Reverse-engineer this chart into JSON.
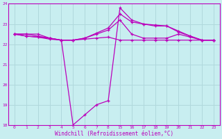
{
  "xlabel": "Windchill (Refroidissement éolien,°C)",
  "bg_color": "#c8eef0",
  "grid_color": "#b0d8dc",
  "line_color": "#bb00bb",
  "xmin": -0.5,
  "xmax": 17.5,
  "ymin": 18,
  "ymax": 24,
  "xtick_labels": [
    "0",
    "1",
    "2",
    "3",
    "4",
    "5",
    "6",
    "7",
    "8",
    "15",
    "16",
    "17",
    "18",
    "19",
    "20",
    "21",
    "22",
    "23"
  ],
  "ytick_labels": [
    "18",
    "19",
    "20",
    "21",
    "22",
    "23",
    "24"
  ],
  "ytick_vals": [
    18,
    19,
    20,
    21,
    22,
    23,
    24
  ],
  "series": [
    {
      "xi": [
        0,
        1,
        2,
        3,
        4,
        5,
        6,
        7,
        8,
        9,
        10,
        11,
        12,
        13,
        14,
        15,
        16,
        17
      ],
      "y": [
        22.5,
        22.5,
        22.5,
        22.3,
        22.2,
        22.2,
        22.25,
        22.3,
        22.35,
        22.2,
        22.2,
        22.2,
        22.2,
        22.2,
        22.2,
        22.2,
        22.2,
        22.2
      ]
    },
    {
      "xi": [
        0,
        1,
        2,
        3,
        4,
        5,
        6,
        7,
        8,
        9,
        10,
        11,
        12,
        13,
        14,
        15,
        16,
        17
      ],
      "y": [
        22.5,
        22.5,
        22.4,
        22.3,
        22.2,
        22.2,
        22.3,
        22.5,
        22.7,
        23.2,
        22.5,
        22.3,
        22.3,
        22.3,
        22.5,
        22.35,
        22.2,
        22.2
      ]
    },
    {
      "xi": [
        0,
        1,
        2,
        3,
        4,
        5,
        6,
        7,
        8,
        9,
        10,
        11,
        12,
        13,
        14,
        15,
        16,
        17
      ],
      "y": [
        22.5,
        22.4,
        22.35,
        22.3,
        22.2,
        18.0,
        18.5,
        19.0,
        19.2,
        23.8,
        23.2,
        23.0,
        22.9,
        22.9,
        22.6,
        22.4,
        22.2,
        22.2
      ]
    },
    {
      "xi": [
        0,
        1,
        2,
        3,
        4,
        5,
        6,
        7,
        8,
        9,
        10,
        11,
        12,
        13,
        14,
        15,
        16,
        17
      ],
      "y": [
        22.5,
        22.4,
        22.35,
        22.25,
        22.2,
        22.2,
        22.3,
        22.55,
        22.8,
        23.5,
        23.1,
        23.0,
        22.95,
        22.9,
        22.65,
        22.4,
        22.2,
        22.2
      ]
    }
  ]
}
